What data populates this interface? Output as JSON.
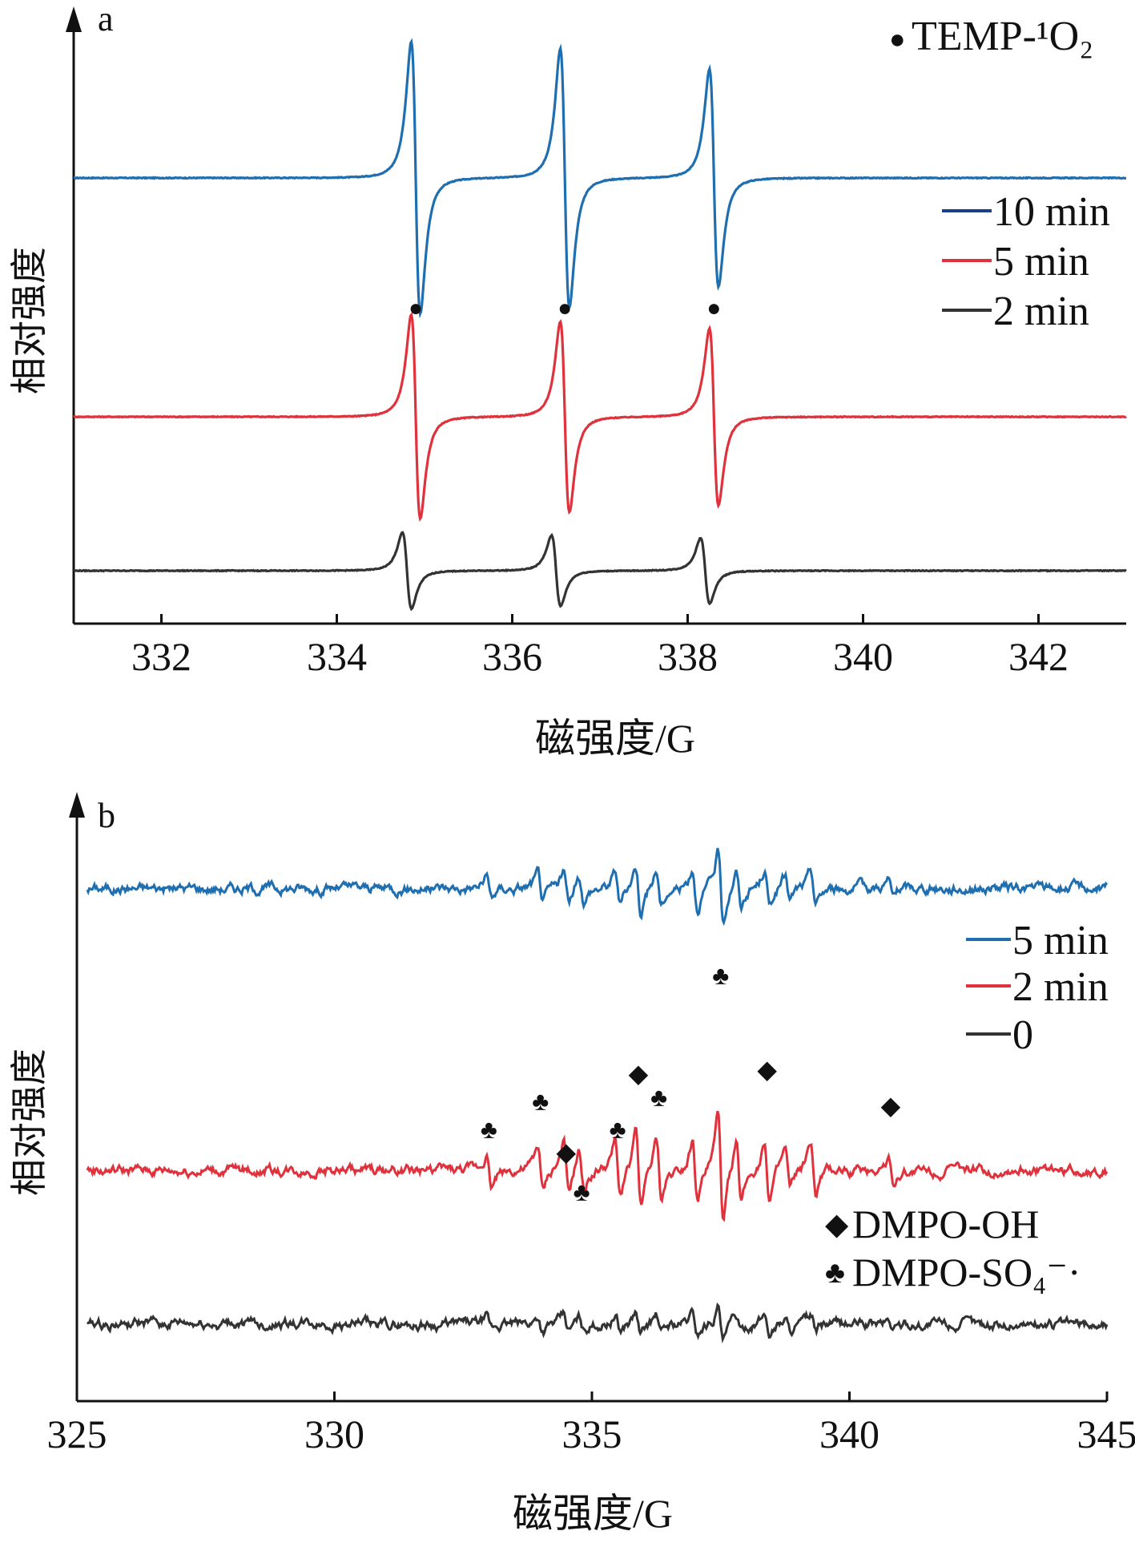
{
  "chart_data": [
    {
      "panel": "a",
      "type": "line",
      "title": "",
      "xlabel": "磁强度/G",
      "ylabel": "相对强度",
      "xlim": [
        331,
        343
      ],
      "xticks": [
        332,
        334,
        336,
        338,
        340,
        342
      ],
      "grid": false,
      "legend": "right",
      "marker_legend": [
        {
          "symbol": "●",
          "label": "TEMP-¹O₂"
        }
      ],
      "peak_markers": [
        {
          "symbol": "●",
          "x": 334.9
        },
        {
          "symbol": "●",
          "x": 336.6
        },
        {
          "symbol": "●",
          "x": 338.3
        }
      ],
      "series": [
        {
          "name": "10 min",
          "color": "#1f6fb0",
          "baseline": 0.8,
          "lines": [
            {
              "center": 334.9,
              "height": 1.0
            },
            {
              "center": 336.6,
              "height": 0.95
            },
            {
              "center": 338.3,
              "height": 0.8
            }
          ]
        },
        {
          "name": "5 min",
          "color": "#e0323c",
          "baseline": 0.0,
          "lines": [
            {
              "center": 334.9,
              "height": 0.75
            },
            {
              "center": 336.6,
              "height": 0.7
            },
            {
              "center": 338.3,
              "height": 0.65
            }
          ]
        },
        {
          "name": "2 min",
          "color": "#333333",
          "baseline": -0.5,
          "lines": [
            {
              "center": 334.8,
              "height": 0.28
            },
            {
              "center": 336.5,
              "height": 0.26
            },
            {
              "center": 338.2,
              "height": 0.24
            }
          ]
        }
      ]
    },
    {
      "panel": "b",
      "type": "line",
      "title": "",
      "xlabel": "磁强度/G",
      "ylabel": "相对强度",
      "xlim": [
        325,
        345
      ],
      "xticks": [
        325,
        330,
        335,
        340,
        345
      ],
      "grid": false,
      "legend": "right",
      "marker_legend": [
        {
          "symbol": "◆",
          "label": "DMPO-OH"
        },
        {
          "symbol": "♣",
          "label": "DMPO-SO₄⁻·"
        }
      ],
      "peak_markers": [
        {
          "symbol": "♣",
          "x": 333.0
        },
        {
          "symbol": "♣",
          "x": 334.0
        },
        {
          "symbol": "◆",
          "x": 334.5
        },
        {
          "symbol": "♣",
          "x": 334.8
        },
        {
          "symbol": "♣",
          "x": 335.5
        },
        {
          "symbol": "◆",
          "x": 335.9
        },
        {
          "symbol": "♣",
          "x": 336.3
        },
        {
          "symbol": "♣",
          "x": 337.5
        },
        {
          "symbol": "◆",
          "x": 338.4
        },
        {
          "symbol": "◆",
          "x": 340.8
        }
      ],
      "series": [
        {
          "name": "5 min",
          "color": "#1f6fb0",
          "baseline": 1.0,
          "scale": 0.55,
          "noise": 0.06
        },
        {
          "name": "2 min",
          "color": "#e0323c",
          "baseline": 0.0,
          "scale": 0.9,
          "noise": 0.06
        },
        {
          "name": "0",
          "color": "#333333",
          "baseline": -1.1,
          "scale": 0.28,
          "noise": 0.06
        }
      ],
      "hyperfine_lines": [
        {
          "x": 333.0,
          "amp": 0.25
        },
        {
          "x": 334.0,
          "amp": 0.35
        },
        {
          "x": 334.5,
          "amp": 0.4
        },
        {
          "x": 334.8,
          "amp": 0.3
        },
        {
          "x": 335.5,
          "amp": 0.4
        },
        {
          "x": 335.9,
          "amp": 0.55
        },
        {
          "x": 336.3,
          "amp": 0.45
        },
        {
          "x": 337.0,
          "amp": 0.5
        },
        {
          "x": 337.5,
          "amp": 0.85
        },
        {
          "x": 337.85,
          "amp": 0.45
        },
        {
          "x": 338.4,
          "amp": 0.45
        },
        {
          "x": 338.8,
          "amp": 0.3
        },
        {
          "x": 339.3,
          "amp": 0.4
        },
        {
          "x": 340.8,
          "amp": 0.2
        }
      ]
    }
  ]
}
